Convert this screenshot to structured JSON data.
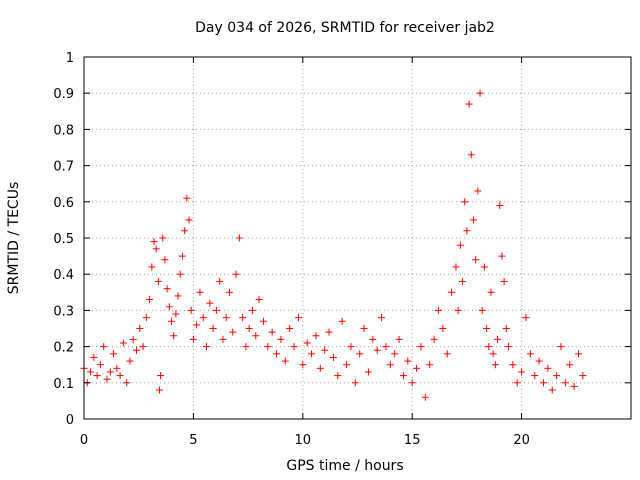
{
  "chart_data": {
    "type": "scatter",
    "title": "Day 034 of 2026, SRMTID for receiver jab2",
    "xlabel": "GPS time / hours",
    "ylabel": "SRMTID / TECUs",
    "xlim": [
      0,
      25
    ],
    "ylim": [
      0,
      1
    ],
    "x_ticks": [
      0,
      5,
      10,
      15,
      20
    ],
    "x_tick_labels": [
      "0",
      "5",
      "10",
      "15",
      "20"
    ],
    "y_ticks": [
      0,
      0.1,
      0.2,
      0.3,
      0.4,
      0.5,
      0.6,
      0.7,
      0.8,
      0.9,
      1
    ],
    "y_tick_labels": [
      "0",
      "0.1",
      "0.2",
      "0.3",
      "0.4",
      "0.5",
      "0.6",
      "0.7",
      "0.8",
      "0.9",
      "1"
    ],
    "grid": true,
    "marker": "+",
    "marker_color": "#ff0000",
    "series": [
      {
        "name": "SRMTID",
        "x": [
          0.0,
          0.15,
          0.3,
          0.45,
          0.6,
          0.75,
          0.9,
          1.05,
          1.2,
          1.35,
          1.5,
          1.65,
          1.8,
          1.95,
          2.1,
          2.25,
          2.4,
          2.55,
          2.7,
          2.85,
          3.0,
          3.1,
          3.2,
          3.3,
          3.4,
          3.45,
          3.5,
          3.6,
          3.7,
          3.8,
          3.9,
          4.0,
          4.1,
          4.2,
          4.3,
          4.4,
          4.5,
          4.6,
          4.7,
          4.8,
          4.9,
          5.0,
          5.15,
          5.3,
          5.45,
          5.6,
          5.75,
          5.9,
          6.05,
          6.2,
          6.35,
          6.5,
          6.65,
          6.8,
          6.95,
          7.1,
          7.25,
          7.4,
          7.55,
          7.7,
          7.85,
          8.0,
          8.2,
          8.4,
          8.6,
          8.8,
          9.0,
          9.2,
          9.4,
          9.6,
          9.8,
          10.0,
          10.2,
          10.4,
          10.6,
          10.8,
          11.0,
          11.2,
          11.4,
          11.6,
          11.8,
          12.0,
          12.2,
          12.4,
          12.6,
          12.8,
          13.0,
          13.2,
          13.4,
          13.6,
          13.8,
          14.0,
          14.2,
          14.4,
          14.6,
          14.8,
          15.0,
          15.2,
          15.4,
          15.6,
          15.8,
          16.0,
          16.2,
          16.4,
          16.6,
          16.8,
          17.0,
          17.1,
          17.2,
          17.3,
          17.4,
          17.5,
          17.6,
          17.7,
          17.8,
          17.9,
          18.0,
          18.1,
          18.2,
          18.3,
          18.4,
          18.5,
          18.6,
          18.7,
          18.8,
          18.9,
          19.0,
          19.1,
          19.2,
          19.3,
          19.4,
          19.6,
          19.8,
          20.0,
          20.2,
          20.4,
          20.6,
          20.8,
          21.0,
          21.2,
          21.4,
          21.6,
          21.8,
          22.0,
          22.2,
          22.4,
          22.6,
          22.8
        ],
        "y": [
          0.14,
          0.1,
          0.13,
          0.17,
          0.12,
          0.15,
          0.2,
          0.11,
          0.13,
          0.18,
          0.14,
          0.12,
          0.21,
          0.1,
          0.16,
          0.22,
          0.19,
          0.25,
          0.2,
          0.28,
          0.33,
          0.42,
          0.49,
          0.47,
          0.38,
          0.08,
          0.12,
          0.5,
          0.44,
          0.36,
          0.31,
          0.27,
          0.23,
          0.29,
          0.34,
          0.4,
          0.45,
          0.52,
          0.61,
          0.55,
          0.3,
          0.22,
          0.26,
          0.35,
          0.28,
          0.2,
          0.32,
          0.25,
          0.3,
          0.38,
          0.22,
          0.28,
          0.35,
          0.24,
          0.4,
          0.5,
          0.28,
          0.2,
          0.25,
          0.3,
          0.23,
          0.33,
          0.27,
          0.2,
          0.24,
          0.18,
          0.22,
          0.16,
          0.25,
          0.2,
          0.28,
          0.15,
          0.21,
          0.18,
          0.23,
          0.14,
          0.19,
          0.24,
          0.17,
          0.12,
          0.27,
          0.15,
          0.2,
          0.1,
          0.18,
          0.25,
          0.13,
          0.22,
          0.19,
          0.28,
          0.2,
          0.15,
          0.18,
          0.22,
          0.12,
          0.16,
          0.1,
          0.14,
          0.2,
          0.06,
          0.15,
          0.22,
          0.3,
          0.25,
          0.18,
          0.35,
          0.42,
          0.3,
          0.48,
          0.38,
          0.6,
          0.52,
          0.87,
          0.73,
          0.55,
          0.44,
          0.63,
          0.9,
          0.3,
          0.42,
          0.25,
          0.2,
          0.35,
          0.18,
          0.15,
          0.22,
          0.59,
          0.45,
          0.38,
          0.25,
          0.2,
          0.15,
          0.1,
          0.13,
          0.28,
          0.18,
          0.12,
          0.16,
          0.1,
          0.14,
          0.08,
          0.12,
          0.2,
          0.1,
          0.15,
          0.09,
          0.18,
          0.12
        ]
      }
    ]
  }
}
